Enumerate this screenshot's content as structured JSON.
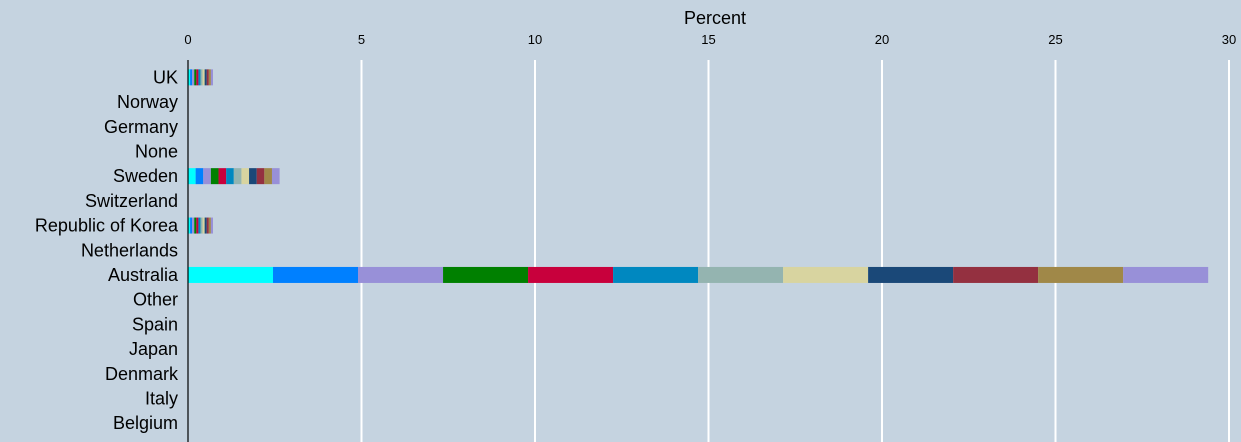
{
  "chart_data": {
    "type": "bar",
    "orientation": "horizontal",
    "stacked": true,
    "xlabel": "Percent",
    "xlim": [
      0,
      30
    ],
    "xticks": [
      0,
      5,
      10,
      15,
      20,
      25,
      30
    ],
    "grid": true,
    "legend": "none",
    "categories": [
      "UK",
      "Norway",
      "Germany",
      "None",
      "Sweden",
      "Switzerland",
      "Republic of Korea",
      "Netherlands",
      "Australia",
      "Other",
      "Spain",
      "Japan",
      "Denmark",
      "Italy",
      "Belgium"
    ],
    "segment_colors": [
      "#00ffff",
      "#0080ff",
      "#9890d8",
      "#008000",
      "#c8003c",
      "#0088c0",
      "#94b4b0",
      "#d8d4a0",
      "#1a4878",
      "#943040",
      "#a08848",
      "#9890d8"
    ],
    "segments": [
      [
        0.06,
        0.06,
        0.06,
        0.06,
        0.06,
        0.06,
        0.06,
        0.06,
        0.06,
        0.06,
        0.06,
        0.06
      ],
      [
        0,
        0,
        0,
        0,
        0,
        0,
        0,
        0,
        0,
        0,
        0,
        0
      ],
      [
        0,
        0,
        0,
        0,
        0,
        0,
        0,
        0,
        0,
        0,
        0,
        0
      ],
      [
        0,
        0,
        0,
        0,
        0,
        0,
        0,
        0,
        0,
        0,
        0,
        0
      ],
      [
        0.22,
        0.22,
        0.22,
        0.22,
        0.22,
        0.22,
        0.22,
        0.22,
        0.22,
        0.22,
        0.22,
        0.22
      ],
      [
        0,
        0,
        0,
        0,
        0,
        0,
        0,
        0,
        0,
        0,
        0,
        0
      ],
      [
        0.06,
        0.06,
        0.06,
        0.06,
        0.06,
        0.06,
        0.06,
        0.06,
        0.06,
        0.06,
        0.06,
        0.06
      ],
      [
        0,
        0,
        0,
        0,
        0,
        0,
        0,
        0,
        0,
        0,
        0,
        0
      ],
      [
        2.45,
        2.45,
        2.45,
        2.45,
        2.45,
        2.45,
        2.45,
        2.45,
        2.45,
        2.45,
        2.45,
        2.45
      ],
      [
        0,
        0,
        0,
        0,
        0,
        0,
        0,
        0,
        0,
        0,
        0,
        0
      ],
      [
        0,
        0,
        0,
        0,
        0,
        0,
        0,
        0,
        0,
        0,
        0,
        0
      ],
      [
        0,
        0,
        0,
        0,
        0,
        0,
        0,
        0,
        0,
        0,
        0,
        0
      ],
      [
        0,
        0,
        0,
        0,
        0,
        0,
        0,
        0,
        0,
        0,
        0,
        0
      ],
      [
        0,
        0,
        0,
        0,
        0,
        0,
        0,
        0,
        0,
        0,
        0,
        0
      ],
      [
        0,
        0,
        0,
        0,
        0,
        0,
        0,
        0,
        0,
        0,
        0,
        0
      ]
    ],
    "colors": {
      "background": "#c5d3e0",
      "gridline": "#ffffff",
      "axis": "#000000"
    }
  }
}
